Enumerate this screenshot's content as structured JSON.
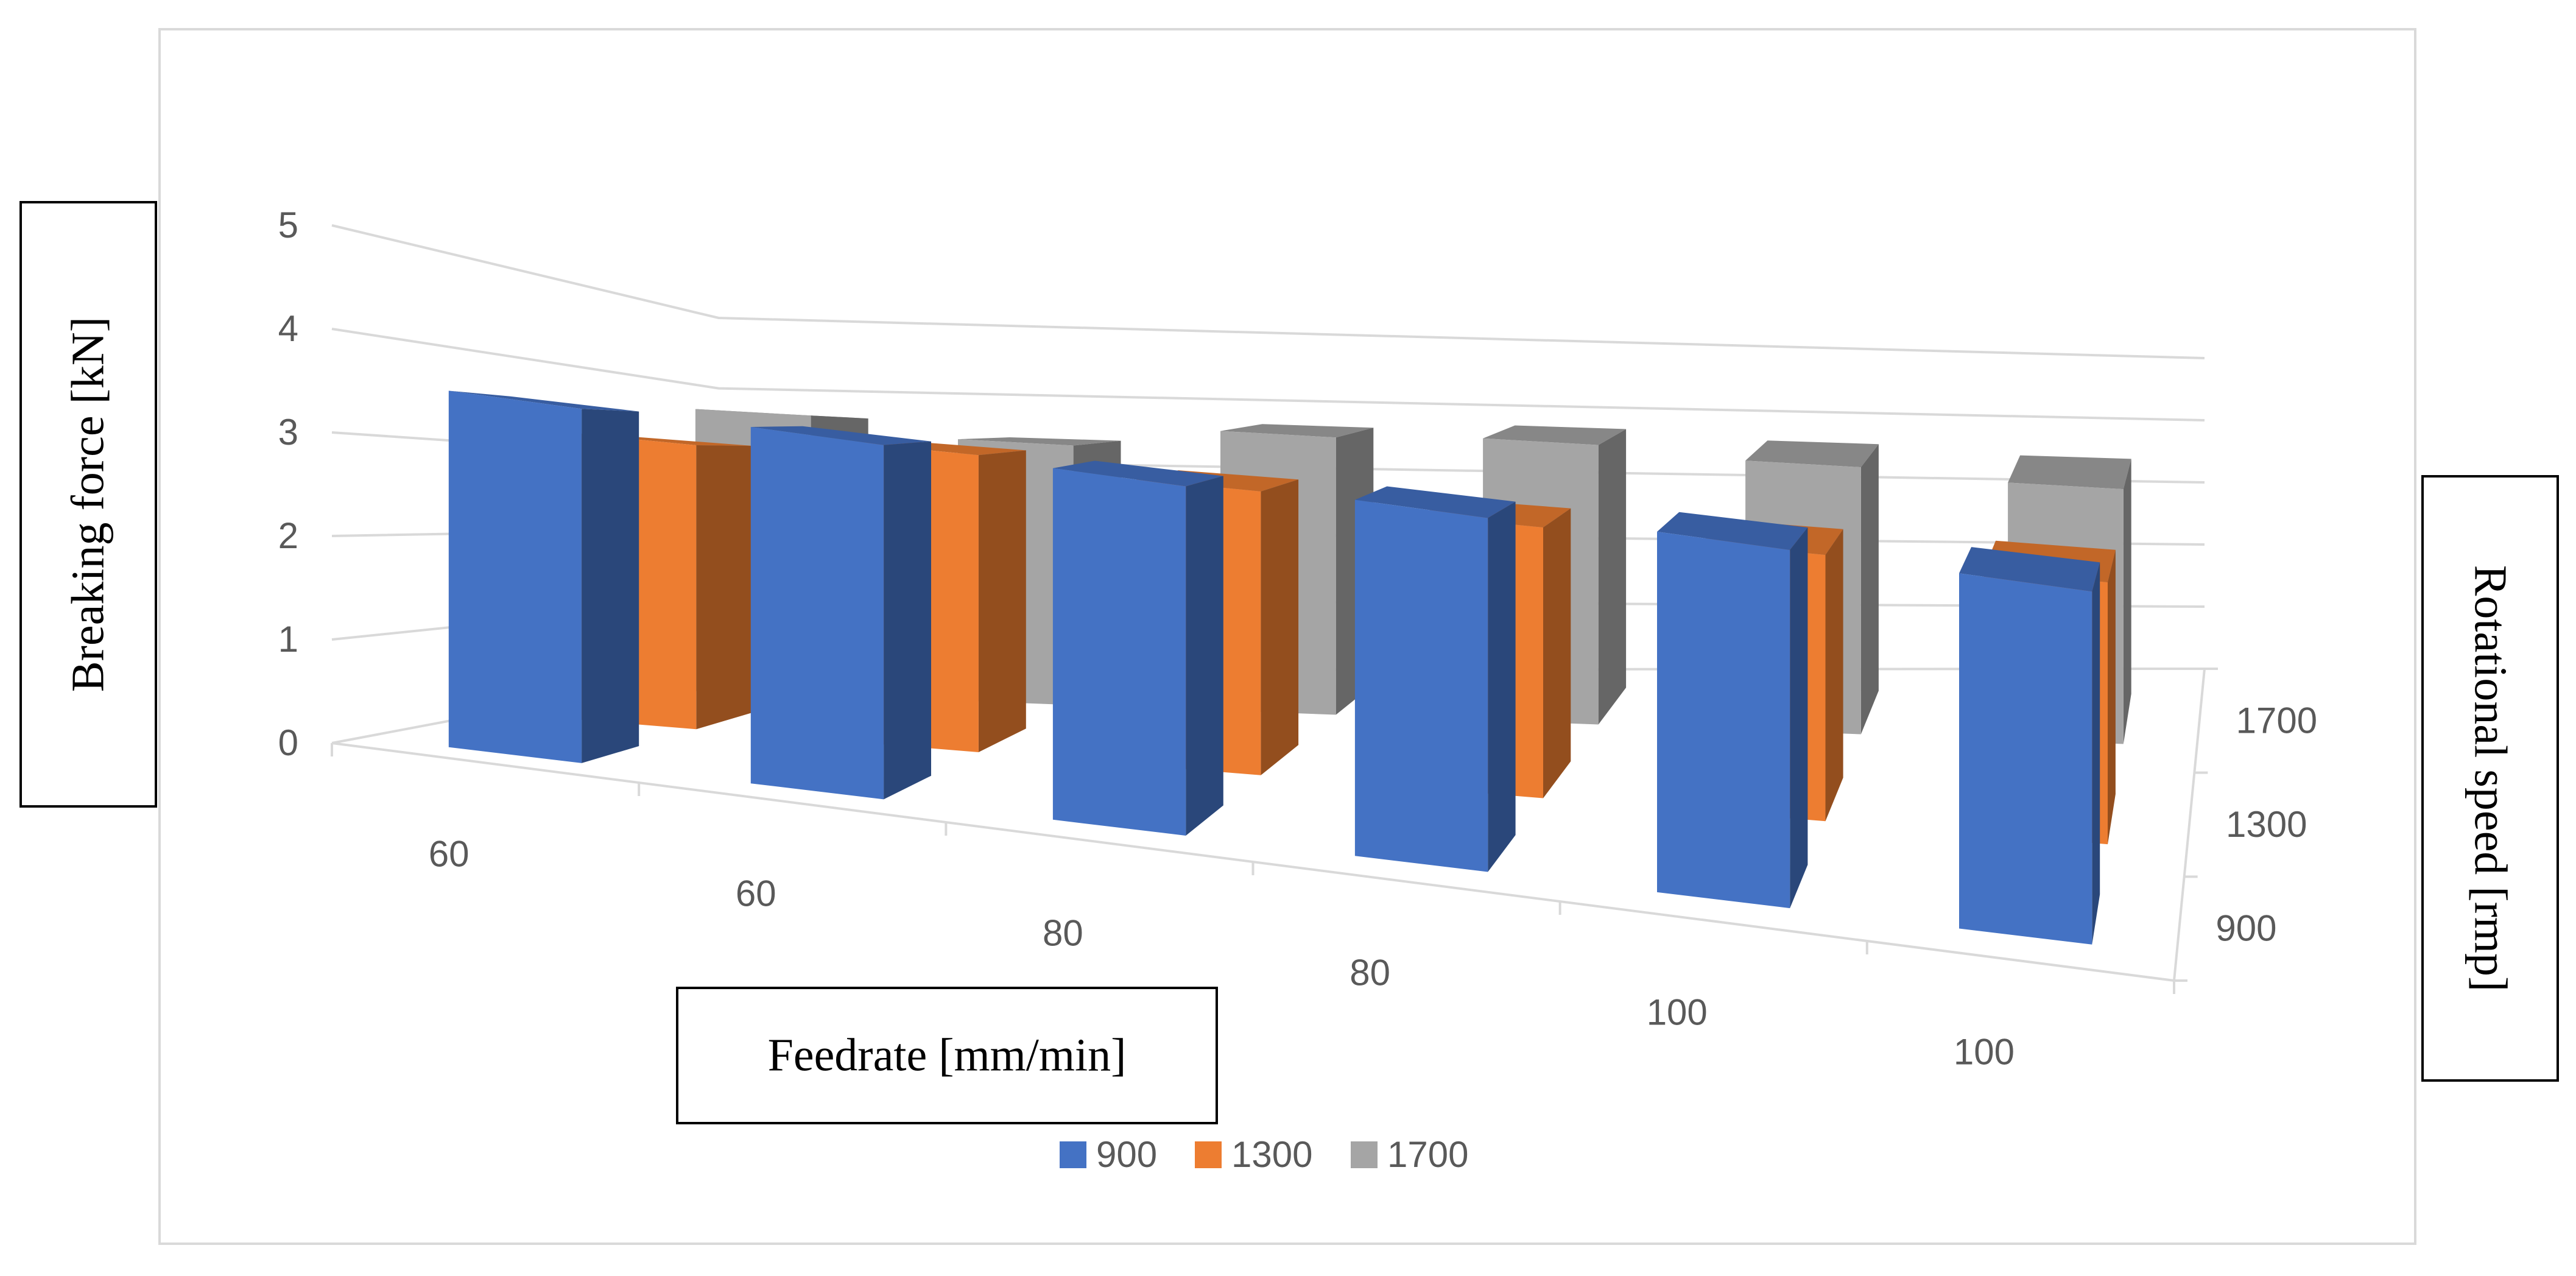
{
  "chart_data": {
    "type": "bar",
    "subtype": "3d-clustered-bar",
    "title": "",
    "xlabel": "Feedrate [mm/min]",
    "ylabel": "Breaking force [kN]",
    "zlabel": "Rotational speed [rmp]",
    "categories": [
      "60",
      "60",
      "80",
      "80",
      "100",
      "100"
    ],
    "depth_categories": [
      "900",
      "1300",
      "1700"
    ],
    "ylim": [
      0,
      5
    ],
    "yticks": [
      "0",
      "1",
      "2",
      "3",
      "4",
      "5"
    ],
    "series": [
      {
        "name": "900",
        "color": "#4472c4",
        "values": [
          3.55,
          3.6,
          3.6,
          3.7,
          3.8,
          3.8
        ]
      },
      {
        "name": "1300",
        "color": "#ed7d31",
        "values": [
          3.2,
          3.4,
          3.3,
          3.2,
          3.2,
          3.2
        ]
      },
      {
        "name": "1700",
        "color": "#a5a5a5",
        "values": [
          3.6,
          3.4,
          3.7,
          3.8,
          3.7,
          3.6
        ]
      }
    ],
    "legend_position": "bottom",
    "grid": true
  }
}
